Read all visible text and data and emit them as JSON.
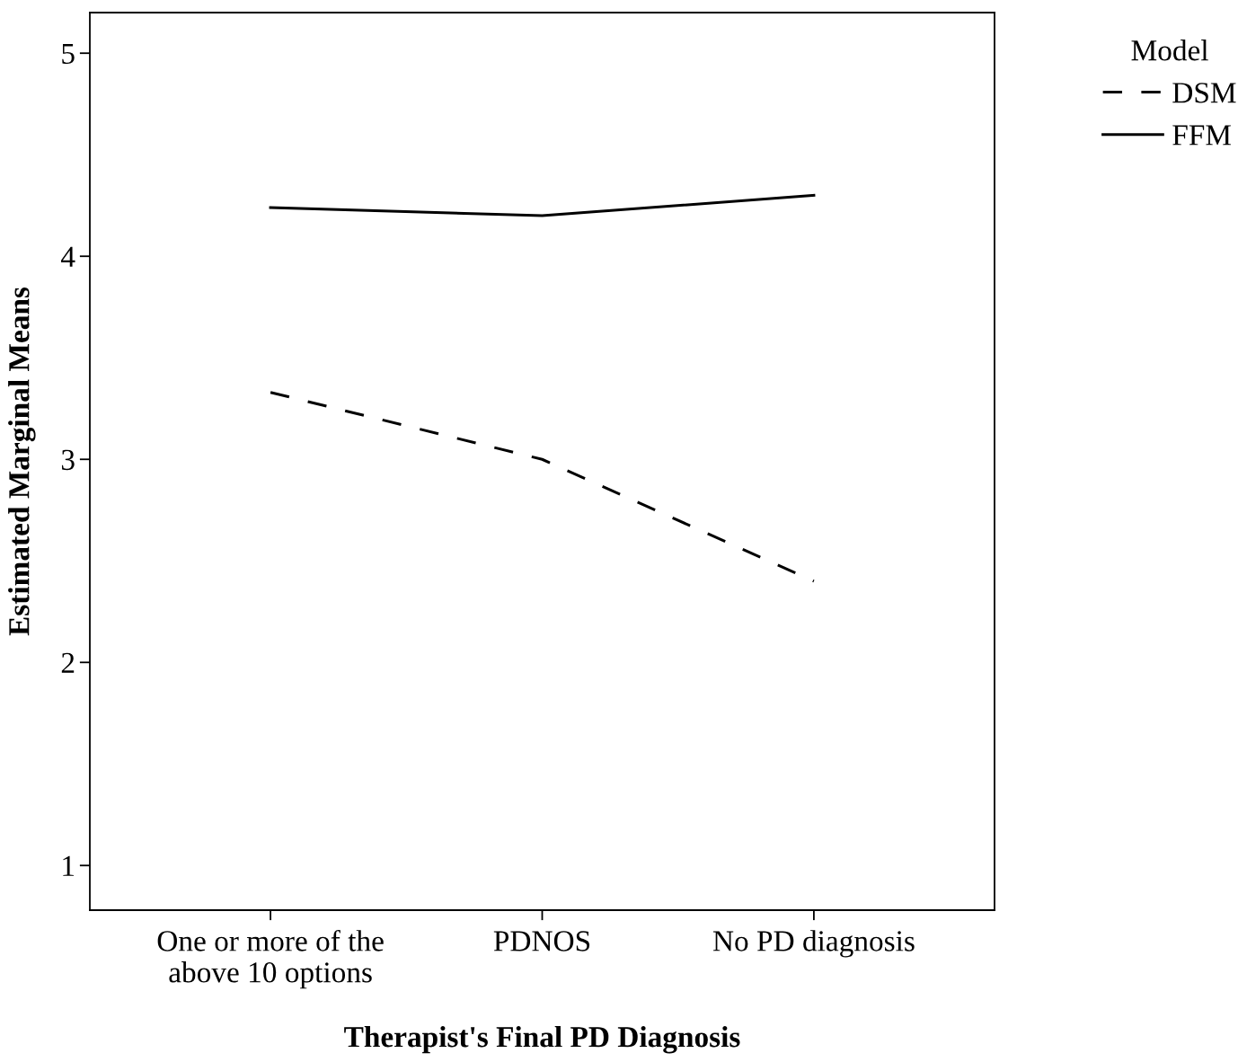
{
  "chart_data": {
    "type": "line",
    "xlabel": "Therapist's Final PD Diagnosis",
    "ylabel": "Estimated Marginal Means",
    "legend_title": "Model",
    "categories": [
      "One or more of the\nabove 10 options",
      "PDNOS",
      "No PD diagnosis"
    ],
    "series": [
      {
        "name": "DSM",
        "color": "#000000",
        "line_style": "dashed",
        "values": [
          3.33,
          3.0,
          2.4
        ]
      },
      {
        "name": "FFM",
        "color": "#000000",
        "line_style": "solid",
        "values": [
          4.24,
          4.2,
          4.3
        ]
      }
    ],
    "ylim": [
      0.78,
      5.2
    ],
    "yticks": [
      1,
      2,
      3,
      4,
      5
    ],
    "grid": false,
    "legend": "top right",
    "marker": "none"
  }
}
